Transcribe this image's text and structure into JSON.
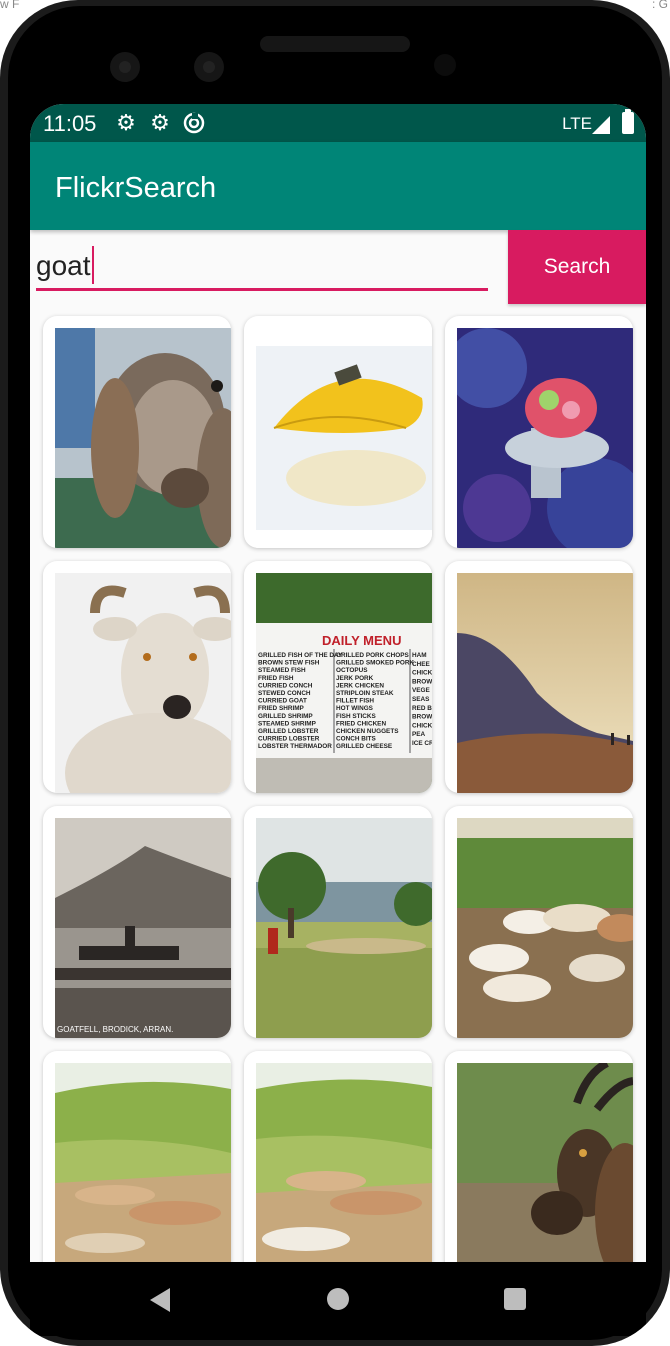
{
  "background_caption": {
    "left": "w F",
    "right": ": G"
  },
  "status_bar": {
    "time": "11:05",
    "network": "LTE",
    "icons": [
      "gear-icon",
      "gear-icon",
      "sync-icon",
      "signal-icon",
      "battery-icon"
    ]
  },
  "app_bar": {
    "title": "FlickrSearch"
  },
  "search": {
    "value": "goat",
    "button_label": "Search"
  },
  "results": {
    "count": 12,
    "items": [
      {
        "subject": "goat close-up behind fence"
      },
      {
        "subject": "yellow leaf reflection"
      },
      {
        "subject": "coral polyp"
      },
      {
        "subject": "white mountain goat"
      },
      {
        "subject": "daily menu board"
      },
      {
        "subject": "mountain landscape at sunset"
      },
      {
        "subject": "vintage photo of boat and pier"
      },
      {
        "subject": "herd in grassland with trees"
      },
      {
        "subject": "goats lying on ground"
      },
      {
        "subject": "herd on green hillside"
      },
      {
        "subject": "herd on green hillside"
      },
      {
        "subject": "goat head close-up"
      }
    ]
  },
  "menu_photo": {
    "heading": "DAILY MENU",
    "left_items": [
      "GRILLED FISH OF THE DAY",
      "BROWN STEW FISH",
      "STEAMED FISH",
      "FRIED FISH",
      "CURRIED CONCH",
      "STEWED CONCH",
      "CURRIED GOAT",
      "FRIED SHRIMP",
      "GRILLED SHRIMP",
      "STEAMED SHRIMP",
      "GRILLED LOBSTER",
      "CURRIED LOBSTER",
      "LOBSTER THERMADOR"
    ],
    "right_items": [
      "GRILLED PORK CHOPS",
      "GRILLED SMOKED PORK",
      "OCTOPUS",
      "JERK PORK",
      "JERK CHICKEN",
      "STRIPLOIN STEAK",
      "FILLET FISH",
      "HOT WINGS",
      "FISH STICKS",
      "FRIED CHICKEN",
      "CHICKEN NUGGETS",
      "CONCH BITS",
      "GRILLED CHEESE"
    ],
    "side_items": [
      "HAM",
      "CHEE",
      "CHICK",
      "BROW",
      "VEGE",
      "SEAS",
      "RED B",
      "BROW",
      "CHICK",
      "PEA",
      "ICE CR"
    ]
  },
  "vintage_caption": "GOATFELL, BRODICK, ARRAN.",
  "colors": {
    "primary": "#008577",
    "primary_dark": "#00574b",
    "accent": "#d81b60"
  }
}
